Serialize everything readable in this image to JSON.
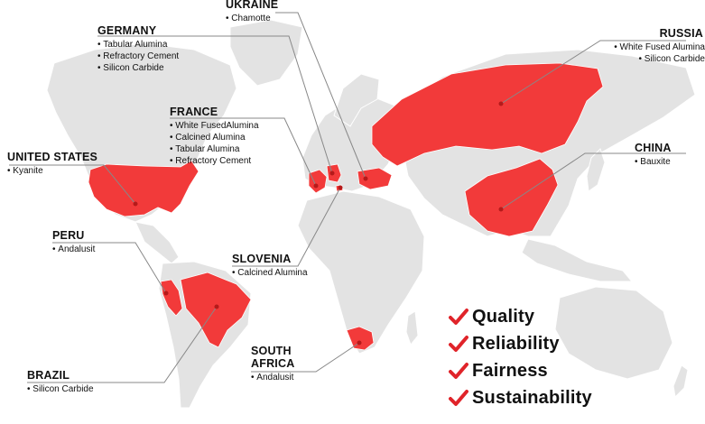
{
  "map": {
    "land_color": "#e3e3e3",
    "highlight_color": "#f23a3a",
    "leader_color": "#888888",
    "dot_color": "#b51a1a",
    "highlighted": [
      "United States",
      "Peru",
      "Brazil",
      "France",
      "Germany",
      "Ukraine",
      "Slovenia",
      "Russia",
      "China",
      "South Africa"
    ]
  },
  "labels": {
    "ukraine": {
      "country": "UKRAINE",
      "items": [
        "Chamotte"
      ]
    },
    "germany": {
      "country": "GERMANY",
      "items": [
        "Tabular Alumina",
        "Refractory Cement",
        "Silicon Carbide"
      ]
    },
    "russia": {
      "country": "RUSSIA",
      "items": [
        "White Fused Alumina",
        "Silicon Carbide"
      ]
    },
    "france": {
      "country": "FRANCE",
      "items": [
        "White FusedAlumina",
        "Calcined Alumina",
        "Tabular Alumina",
        "Refractory Cement"
      ]
    },
    "united_states": {
      "country": "UNITED STATES",
      "items": [
        "Kyanite"
      ]
    },
    "china": {
      "country": "CHINA",
      "items": [
        "Bauxite"
      ]
    },
    "peru": {
      "country": "PERU",
      "items": [
        "Andalusit"
      ]
    },
    "slovenia": {
      "country": "SLOVENIA",
      "items": [
        "Calcined Alumina"
      ]
    },
    "south_africa": {
      "country": "SOUTH AFRICA",
      "items": [
        "Andalusit"
      ]
    },
    "brazil": {
      "country": "BRAZIL",
      "items": [
        "Silicon Carbide"
      ]
    }
  },
  "values": {
    "check_color": "#e0242a",
    "items": [
      "Quality",
      "Reliability",
      "Fairness",
      "Sustainability"
    ]
  }
}
